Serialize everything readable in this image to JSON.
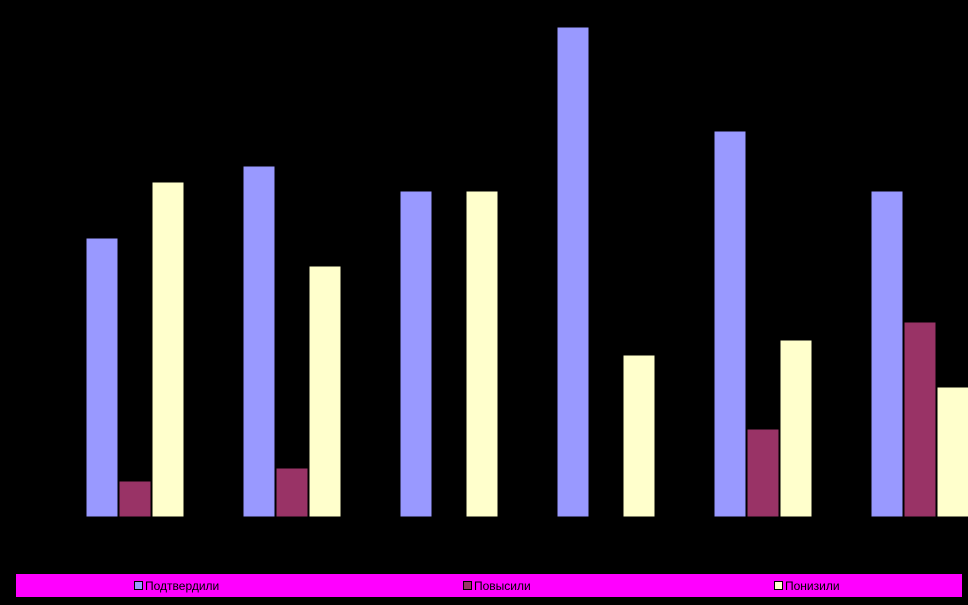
{
  "chart_data": {
    "type": "bar",
    "categories": [
      "",
      "",
      "",
      "",
      "",
      ""
    ],
    "series": [
      {
        "name": "Подтвердили",
        "values": [
          279,
          351,
          326,
          490,
          386,
          326
        ]
      },
      {
        "name": "Повысили",
        "values": [
          36,
          49,
          0,
          0,
          88,
          195
        ]
      },
      {
        "name": "Понизили",
        "values": [
          335,
          251,
          326,
          162,
          177,
          130
        ]
      }
    ],
    "ylim": [
      0,
      500
    ],
    "colors": [
      "#9999ff",
      "#993366",
      "#ffffcc"
    ],
    "background": "#000000",
    "legend_background": "#ff00ff",
    "legend_position": "bottom",
    "grid": false
  }
}
